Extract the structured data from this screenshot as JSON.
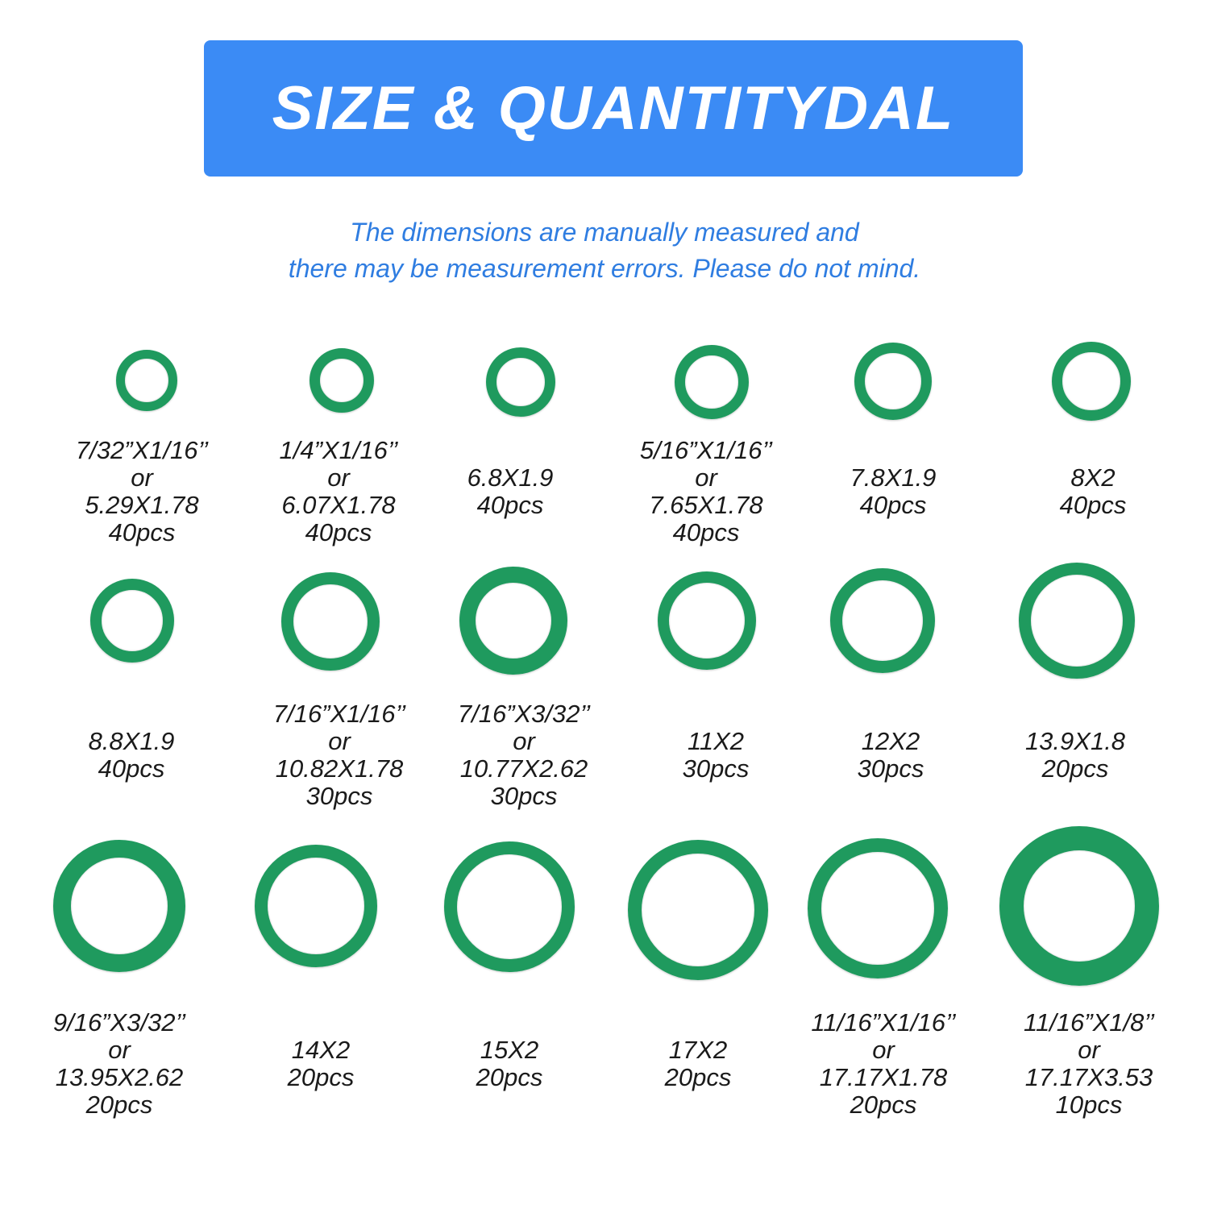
{
  "banner": {
    "title": "SIZE & QUANTITYDAL",
    "color": "#3b8bf5"
  },
  "note": {
    "line1": "The dimensions are manually measured and",
    "line2": "there may be measurement errors. Please do not mind.",
    "color": "#2f7de1"
  },
  "ring_color": "#1f9a5e",
  "rings": [
    {
      "lines": [
        "7/32”X1/16’’",
        "or",
        "5.29X1.78",
        "40pcs"
      ]
    },
    {
      "lines": [
        "1/4”X1/16’’",
        "or",
        "6.07X1.78",
        "40pcs"
      ]
    },
    {
      "lines": [
        "6.8X1.9",
        "40pcs"
      ]
    },
    {
      "lines": [
        "5/16”X1/16’’",
        "or",
        "7.65X1.78",
        "40pcs"
      ]
    },
    {
      "lines": [
        "7.8X1.9",
        "40pcs"
      ]
    },
    {
      "lines": [
        "8X2",
        "40pcs"
      ]
    },
    {
      "lines": [
        "8.8X1.9",
        "40pcs"
      ]
    },
    {
      "lines": [
        "7/16”X1/16’’",
        "or",
        "10.82X1.78",
        "30pcs"
      ]
    },
    {
      "lines": [
        "7/16”X3/32’’",
        "or",
        "10.77X2.62",
        "30pcs"
      ]
    },
    {
      "lines": [
        "11X2",
        "30pcs"
      ]
    },
    {
      "lines": [
        "12X2",
        "30pcs"
      ]
    },
    {
      "lines": [
        "13.9X1.8",
        "20pcs"
      ]
    },
    {
      "lines": [
        "9/16”X3/32’’",
        "or",
        "13.95X2.62",
        "20pcs"
      ]
    },
    {
      "lines": [
        "14X2",
        "20pcs"
      ]
    },
    {
      "lines": [
        "15X2",
        "20pcs"
      ]
    },
    {
      "lines": [
        "17X2",
        "20pcs"
      ]
    },
    {
      "lines": [
        "11/16”X1/16’’",
        "or",
        "17.17X1.78",
        "20pcs"
      ]
    },
    {
      "lines": [
        "11/16”X1/8’’",
        "or",
        "17.17X3.53",
        "10pcs"
      ]
    }
  ]
}
